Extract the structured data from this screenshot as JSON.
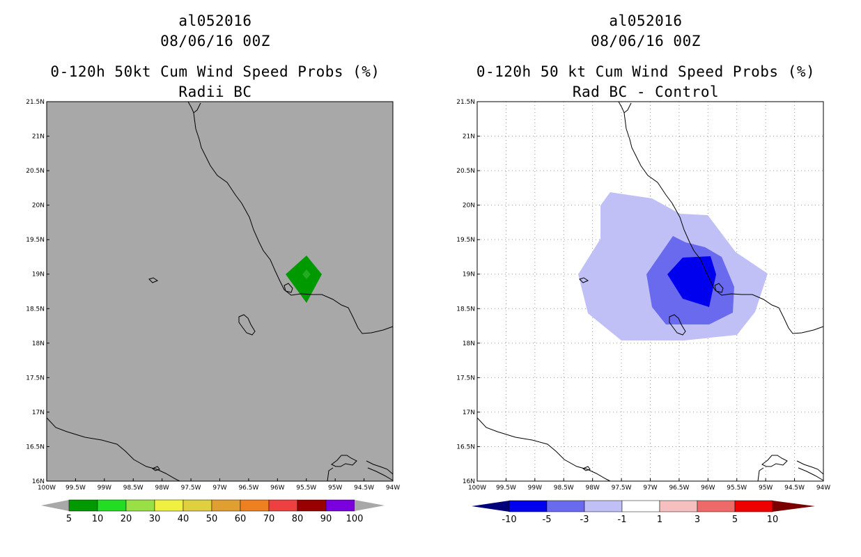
{
  "left": {
    "title_line1": "al052016",
    "title_line2": "08/06/16 00Z",
    "title_line3": "0-120h 50kt Cum Wind Speed Probs (%)",
    "title_line4": "Radii BC",
    "background": "#a8a8a8",
    "colorbar": {
      "labels": [
        "5",
        "10",
        "20",
        "30",
        "40",
        "50",
        "60",
        "70",
        "80",
        "90",
        "100"
      ],
      "colors": [
        "#009900",
        "#22dd22",
        "#99e044",
        "#f0f040",
        "#e0d040",
        "#e0a030",
        "#ee8020",
        "#ee4040",
        "#990000",
        "#7a00dd"
      ]
    }
  },
  "right": {
    "title_line1": "al052016",
    "title_line2": "08/06/16 00Z",
    "title_line3": "0-120h 50 kt Cum Wind Speed Probs (%)",
    "title_line4": "Rad BC - Control",
    "background": "#ffffff",
    "colorbar": {
      "labels": [
        "-10",
        "-5",
        "-3",
        "-1",
        "1",
        "3",
        "5",
        "10"
      ],
      "colors": [
        "#00007a",
        "#0000ee",
        "#6a6aee",
        "#c0c0f6",
        "#ffffff",
        "#f6c0c0",
        "#ee6a6a",
        "#ee0000",
        "#7a0000"
      ]
    }
  },
  "axes": {
    "lat_labels": [
      "21.5N",
      "21N",
      "20.5N",
      "20N",
      "19.5N",
      "19N",
      "18.5N",
      "18N",
      "17.5N",
      "17N",
      "16.5N",
      "16N"
    ],
    "lon_labels": [
      "100W",
      "99.5W",
      "99W",
      "98.5W",
      "98W",
      "97.5W",
      "97W",
      "96.5W",
      "96W",
      "95.5W",
      "95W",
      "94.5W",
      "94W"
    ]
  }
}
